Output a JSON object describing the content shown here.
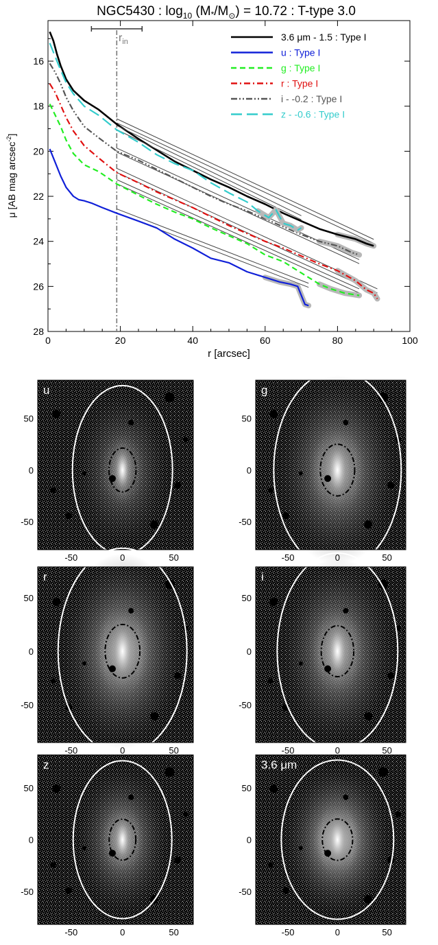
{
  "title_parts": {
    "prefix": "NGC5430 : log",
    "sub10": "10",
    "mid": " (M",
    "star": "*",
    "slash": "/M",
    "sun": "⊙",
    "suffix": ") = 10.72 : T-type 3.0"
  },
  "rin_label": "r",
  "rin_sub": "in",
  "colors": {
    "black": "#000000",
    "u": "#1020d8",
    "g": "#22ee22",
    "r": "#e01010",
    "i": "#555555",
    "z": "#33cccc",
    "rin_line": "#777777",
    "fit": "#444444",
    "err": "#b8b8b8"
  },
  "chart_data": [
    {
      "type": "line",
      "title": "NGC5430 : log10 (M*/M⊙) = 10.72 : T-type 3.0",
      "xlabel": "r [arcsec]",
      "ylabel": "μ [AB mag arcsec⁻²]",
      "xlim": [
        0,
        100
      ],
      "ylim": [
        28,
        14.2
      ],
      "y_inverted": true,
      "xticks": [
        "0",
        "20",
        "40",
        "60",
        "80",
        "100"
      ],
      "yticks": [
        "16",
        "18",
        "20",
        "22",
        "24",
        "26",
        "28"
      ],
      "r_in": 19,
      "r_in_range": [
        12,
        26
      ],
      "legend_position": "top-right",
      "series": [
        {
          "key": "ir",
          "name": "3.6 μm - 1.5 : Type I",
          "style": "solid",
          "points": [
            [
              0.5,
              14.7
            ],
            [
              1.5,
              15.1
            ],
            [
              2.5,
              15.7
            ],
            [
              3.5,
              16.2
            ],
            [
              5,
              16.8
            ],
            [
              7,
              17.3
            ],
            [
              10,
              17.75
            ],
            [
              14,
              18.15
            ],
            [
              19,
              18.8
            ],
            [
              25,
              19.45
            ],
            [
              30,
              19.95
            ],
            [
              35,
              20.45
            ],
            [
              40,
              20.85
            ],
            [
              45,
              21.25
            ],
            [
              50,
              21.6
            ],
            [
              55,
              22.0
            ],
            [
              60,
              22.35
            ],
            [
              65,
              22.75
            ],
            [
              70,
              23.1
            ],
            [
              75,
              23.45
            ],
            [
              80,
              23.7
            ],
            [
              85,
              23.9
            ],
            [
              88,
              24.1
            ],
            [
              90,
              24.2
            ]
          ],
          "fit": [
            [
              19,
              18.65
            ],
            [
              90,
              24.0
            ]
          ]
        },
        {
          "key": "u",
          "name": "u : Type I",
          "style": "solid",
          "points": [
            [
              0.5,
              19.9
            ],
            [
              2,
              20.5
            ],
            [
              3.5,
              21.1
            ],
            [
              5,
              21.6
            ],
            [
              7,
              22.0
            ],
            [
              8.5,
              22.15
            ],
            [
              10,
              22.2
            ],
            [
              12,
              22.3
            ],
            [
              15,
              22.5
            ],
            [
              19,
              22.75
            ],
            [
              25,
              23.1
            ],
            [
              30,
              23.4
            ],
            [
              35,
              23.9
            ],
            [
              40,
              24.3
            ],
            [
              45,
              24.75
            ],
            [
              50,
              24.95
            ],
            [
              55,
              25.35
            ],
            [
              60,
              25.6
            ],
            [
              64,
              25.8
            ],
            [
              67,
              25.9
            ],
            [
              69,
              26.0
            ],
            [
              70,
              26.4
            ],
            [
              71,
              26.8
            ],
            [
              72,
              26.85
            ]
          ],
          "fit": [
            [
              19,
              22.65
            ],
            [
              72,
              25.95
            ]
          ]
        },
        {
          "key": "g",
          "name": "g : Type I",
          "style": "dashed",
          "points": [
            [
              0.5,
              17.9
            ],
            [
              2,
              18.4
            ],
            [
              3.5,
              18.9
            ],
            [
              5,
              19.5
            ],
            [
              7,
              20.1
            ],
            [
              10,
              20.6
            ],
            [
              14,
              20.9
            ],
            [
              19,
              21.45
            ],
            [
              25,
              21.95
            ],
            [
              30,
              22.35
            ],
            [
              35,
              22.7
            ],
            [
              40,
              23.0
            ],
            [
              45,
              23.4
            ],
            [
              50,
              23.75
            ],
            [
              55,
              24.1
            ],
            [
              60,
              24.6
            ],
            [
              65,
              24.9
            ],
            [
              70,
              25.4
            ],
            [
              75,
              25.9
            ],
            [
              78,
              26.1
            ],
            [
              80,
              26.2
            ],
            [
              82,
              26.3
            ],
            [
              84,
              26.35
            ],
            [
              86,
              26.4
            ]
          ],
          "fit": [
            [
              19,
              21.35
            ],
            [
              86,
              26.2
            ]
          ]
        },
        {
          "key": "r",
          "name": "r : Type I",
          "style": "dashdot",
          "points": [
            [
              0.5,
              17.0
            ],
            [
              2,
              17.4
            ],
            [
              3.5,
              17.95
            ],
            [
              5,
              18.5
            ],
            [
              7,
              19.1
            ],
            [
              10,
              19.75
            ],
            [
              14,
              20.3
            ],
            [
              19,
              20.95
            ],
            [
              25,
              21.4
            ],
            [
              30,
              21.8
            ],
            [
              35,
              22.15
            ],
            [
              40,
              22.5
            ],
            [
              45,
              22.9
            ],
            [
              50,
              23.3
            ],
            [
              55,
              23.65
            ],
            [
              60,
              24.0
            ],
            [
              65,
              24.3
            ],
            [
              70,
              24.65
            ],
            [
              75,
              25.0
            ],
            [
              80,
              25.3
            ],
            [
              85,
              25.75
            ],
            [
              88,
              26.15
            ],
            [
              90,
              26.3
            ],
            [
              91,
              26.55
            ]
          ],
          "fit": [
            [
              19,
              20.85
            ],
            [
              91,
              26.2
            ]
          ]
        },
        {
          "key": "i",
          "name": "i - -0.2 : Type I",
          "style": "dashdotdot",
          "points": [
            [
              0.5,
              16.1
            ],
            [
              2,
              16.5
            ],
            [
              3.5,
              17.0
            ],
            [
              5,
              17.6
            ],
            [
              7,
              18.2
            ],
            [
              10,
              18.9
            ],
            [
              14,
              19.4
            ],
            [
              19,
              20.0
            ],
            [
              25,
              20.4
            ],
            [
              30,
              20.8
            ],
            [
              35,
              21.2
            ],
            [
              40,
              21.6
            ],
            [
              45,
              22.0
            ],
            [
              50,
              22.35
            ],
            [
              55,
              22.65
            ],
            [
              60,
              23.0
            ],
            [
              65,
              23.35
            ],
            [
              70,
              23.7
            ],
            [
              75,
              24.0
            ],
            [
              80,
              24.2
            ],
            [
              84,
              24.5
            ],
            [
              86,
              24.6
            ]
          ],
          "fit": [
            [
              19,
              19.95
            ],
            [
              86,
              24.9
            ]
          ]
        },
        {
          "key": "z",
          "name": "z - -0.6 : Type I",
          "style": "longdash",
          "points": [
            [
              0.5,
              15.2
            ],
            [
              1.5,
              15.6
            ],
            [
              3,
              16.2
            ],
            [
              5,
              16.95
            ],
            [
              7,
              17.45
            ],
            [
              10,
              18.0
            ],
            [
              14,
              18.4
            ],
            [
              19,
              19.05
            ],
            [
              25,
              19.6
            ],
            [
              30,
              20.15
            ],
            [
              35,
              20.55
            ],
            [
              40,
              20.85
            ],
            [
              45,
              21.4
            ],
            [
              50,
              21.85
            ],
            [
              55,
              22.25
            ],
            [
              58,
              22.65
            ],
            [
              61,
              22.95
            ],
            [
              63,
              22.6
            ],
            [
              65,
              23.2
            ],
            [
              67,
              23.3
            ],
            [
              69,
              23.5
            ],
            [
              70,
              23.4
            ]
          ],
          "fit": [
            [
              19,
              18.95
            ],
            [
              70,
              22.95
            ]
          ]
        }
      ]
    },
    {
      "type": "image",
      "panels": [
        "u",
        "g",
        "r",
        "i",
        "z",
        "3.6 μm"
      ],
      "xticks": [
        "-50",
        "0",
        "50"
      ],
      "yticks": [
        "50",
        "0",
        "-50"
      ]
    }
  ]
}
